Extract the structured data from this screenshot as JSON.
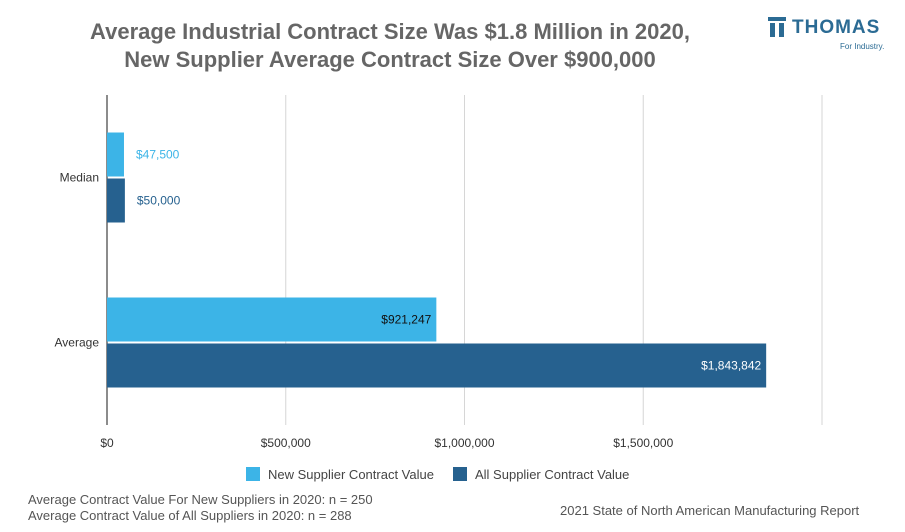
{
  "title_line1": "Average Industrial Contract Size Was $1.8 Million in 2020,",
  "title_line2": "New Supplier Average Contract Size Over $900,000",
  "logo": {
    "word": "THOMAS",
    "tagline": "For Industry.",
    "color": "#2b6b94",
    "icon": "thomas-logo-icon"
  },
  "notes": [
    "Average Contract Value For New Suppliers in 2020: n = 250",
    "Average Contract Value of All Suppliers in 2020: n = 288"
  ],
  "source": "2021 State of North American Manufacturing Report",
  "chart_data": {
    "type": "bar",
    "orientation": "horizontal",
    "categories": [
      "Median",
      "Average"
    ],
    "series": [
      {
        "name": "New Supplier Contract Value",
        "color": "#3cb4e7",
        "values": [
          47500,
          921247
        ],
        "labels": [
          "$47,500",
          "$921,247"
        ]
      },
      {
        "name": "All Supplier Contract Value",
        "color": "#26618f",
        "values": [
          50000,
          1843842
        ],
        "labels": [
          "$50,000",
          "$1,843,842"
        ]
      }
    ],
    "xlim": [
      0,
      2000000
    ],
    "xticks": [
      0,
      500000,
      1000000,
      1500000,
      2000000
    ],
    "xtick_labels": [
      "$0",
      "$500,000",
      "$1,000,000",
      "$1,500,000",
      ""
    ],
    "grid": true,
    "legend_position": "bottom"
  }
}
